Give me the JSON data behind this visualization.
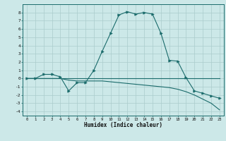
{
  "xlabel": "Humidex (Indice chaleur)",
  "background_color": "#cce8e8",
  "grid_color": "#aacccc",
  "line_color": "#1a6b6b",
  "xlim": [
    -0.5,
    23.5
  ],
  "ylim": [
    -4.5,
    9.0
  ],
  "xticks": [
    0,
    1,
    2,
    3,
    4,
    5,
    6,
    7,
    8,
    9,
    10,
    11,
    12,
    13,
    14,
    15,
    16,
    17,
    18,
    19,
    20,
    21,
    22,
    23
  ],
  "yticks": [
    -4,
    -3,
    -2,
    -1,
    0,
    1,
    2,
    3,
    4,
    5,
    6,
    7,
    8
  ],
  "series1_x": [
    0,
    1,
    2,
    3,
    4,
    5,
    6,
    7,
    8,
    9,
    10,
    11,
    12,
    13,
    14,
    15,
    16,
    17,
    18,
    19,
    20,
    21,
    22,
    23
  ],
  "series1_y": [
    0,
    0,
    0.5,
    0.5,
    0.2,
    -1.5,
    -0.5,
    -0.5,
    1.0,
    3.3,
    5.5,
    7.7,
    8.1,
    7.8,
    8.0,
    7.8,
    5.5,
    2.2,
    2.1,
    0.1,
    -1.5,
    -1.8,
    -2.1,
    -2.4
  ],
  "series2_x": [
    0,
    1,
    2,
    3,
    4,
    5,
    6,
    7,
    8,
    9,
    10,
    11,
    12,
    13,
    14,
    15,
    16,
    17,
    18,
    19,
    20,
    21,
    22,
    23
  ],
  "series2_y": [
    0,
    0,
    0,
    0,
    0,
    -0.2,
    -0.3,
    -0.3,
    -0.3,
    -0.3,
    -0.4,
    -0.5,
    -0.6,
    -0.7,
    -0.8,
    -0.9,
    -1.0,
    -1.1,
    -1.3,
    -1.6,
    -2.0,
    -2.5,
    -3.0,
    -3.8
  ],
  "series3_x": [
    0,
    23
  ],
  "series3_y": [
    0,
    0
  ]
}
